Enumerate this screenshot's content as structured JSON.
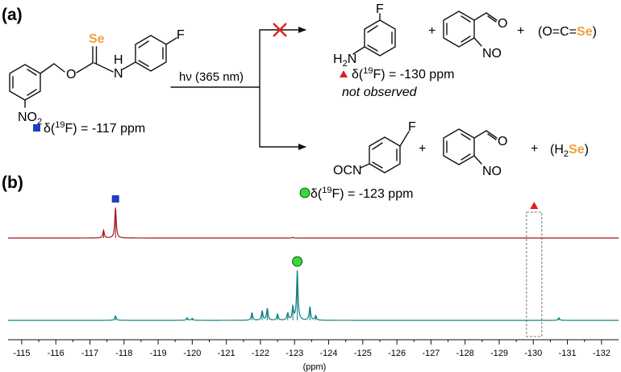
{
  "panel_labels": {
    "a": "(a)",
    "b": "(b)"
  },
  "scheme": {
    "reactant": {
      "se": "Se",
      "o": "O",
      "nh": "H",
      "n_atom": "N",
      "f": "F",
      "no2_main": "NO",
      "no2_sub": "2",
      "shift_prefix": "δ(",
      "shift_isotope": "19",
      "shift_rest": "F) = -117 ppm"
    },
    "condition": "hν (365 nm)",
    "top_products": {
      "f": "F",
      "h2n": "H",
      "h2n_sub": "2",
      "h2n_n": "N",
      "plus1": "+",
      "aldehyde_o": "O",
      "nitroso": "NO",
      "plus2": "+",
      "ocse_prefix": "(O=C=",
      "ocse_se": "Se",
      "ocse_suffix": ")",
      "shift_prefix": "δ(",
      "shift_isotope": "19",
      "shift_rest": "F) = -130 ppm",
      "note": "not observed"
    },
    "bottom_products": {
      "f": "F",
      "ocn": "OCN",
      "plus1": "+",
      "aldehyde_o": "O",
      "nitroso": "NO",
      "plus2": "+",
      "h2se_prefix": "(H",
      "h2se_sub": "2",
      "h2se_se": "Se",
      "h2se_suffix": ")",
      "shift_prefix": "δ(",
      "shift_isotope": "19",
      "shift_rest": "F) = -123 ppm"
    }
  },
  "colors": {
    "selenium": "#f0a040",
    "square_marker": "#1f3fbf",
    "triangle_marker": "#dd1f1f",
    "circle_marker": "#33dd33",
    "cross": "#e02020",
    "trace_top": "#a01818",
    "trace_bottom": "#108080"
  },
  "chart_data": {
    "type": "line",
    "xlabel": "(ppm)",
    "xlim": [
      -114.6,
      -132.5
    ],
    "x_reversed": true,
    "ticks": [
      -115,
      -116,
      -117,
      -118,
      -119,
      -120,
      -121,
      -122,
      -123,
      -124,
      -125,
      -126,
      -127,
      -128,
      -129,
      -130,
      -131,
      -132
    ],
    "series": [
      {
        "key": "top",
        "peaks": [
          {
            "x": -117.4,
            "height": 0.25
          },
          {
            "x": -117.75,
            "height": 1.0
          },
          {
            "x": -122.95,
            "height": 0.02
          }
        ],
        "marker": {
          "shape": "square",
          "x": -117.75
        }
      },
      {
        "key": "bottom",
        "peaks": [
          {
            "x": -117.75,
            "height": 0.09
          },
          {
            "x": -119.85,
            "height": 0.05
          },
          {
            "x": -120.0,
            "height": 0.04
          },
          {
            "x": -121.75,
            "height": 0.15
          },
          {
            "x": -122.05,
            "height": 0.19
          },
          {
            "x": -122.2,
            "height": 0.24
          },
          {
            "x": -122.5,
            "height": 0.12
          },
          {
            "x": -122.8,
            "height": 0.14
          },
          {
            "x": -122.95,
            "height": 0.26
          },
          {
            "x": -123.08,
            "height": 1.0
          },
          {
            "x": -123.45,
            "height": 0.27
          },
          {
            "x": -123.62,
            "height": 0.09
          },
          {
            "x": -130.75,
            "height": 0.05
          }
        ],
        "marker": {
          "shape": "circle",
          "x": -123.08
        }
      }
    ],
    "highlight": {
      "shape": "triangle",
      "x_range": [
        -129.8,
        -130.25
      ]
    }
  }
}
